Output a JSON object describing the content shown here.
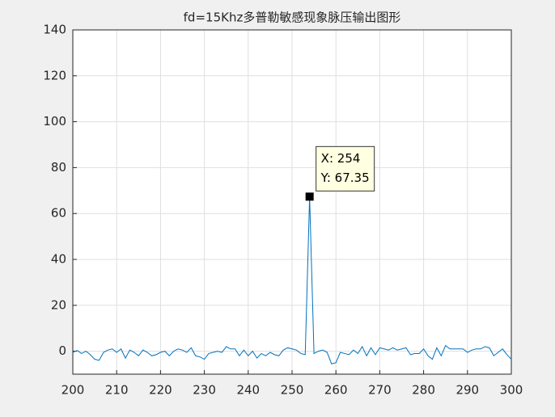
{
  "chart_data": {
    "type": "line",
    "title": "fd=15Khz多普勒敏感现象脉压输出图形",
    "x": [
      200,
      201,
      202,
      203,
      204,
      205,
      206,
      207,
      208,
      209,
      210,
      211,
      212,
      213,
      214,
      215,
      216,
      217,
      218,
      219,
      220,
      221,
      222,
      223,
      224,
      225,
      226,
      227,
      228,
      229,
      230,
      231,
      232,
      233,
      234,
      235,
      236,
      237,
      238,
      239,
      240,
      241,
      242,
      243,
      244,
      245,
      246,
      247,
      248,
      249,
      250,
      251,
      252,
      253,
      254,
      255,
      256,
      257,
      258,
      259,
      260,
      261,
      262,
      263,
      264,
      265,
      266,
      267,
      268,
      269,
      270,
      271,
      272,
      273,
      274,
      275,
      276,
      277,
      278,
      279,
      280,
      281,
      282,
      283,
      284,
      285,
      286,
      287,
      288,
      289,
      290,
      291,
      292,
      293,
      294,
      295,
      296,
      297,
      298,
      299,
      300
    ],
    "series": [
      {
        "color": "#0072bd",
        "values": [
          -0.5,
          0.3,
          -1,
          0,
          -1.5,
          -3.5,
          -4,
          -0.5,
          0.5,
          1,
          -0.5,
          1,
          -3,
          0.5,
          -0.5,
          -2,
          0.5,
          -0.5,
          -2,
          -1.5,
          -0.5,
          0,
          -2,
          0,
          1,
          0.5,
          -0.5,
          1.5,
          -2,
          -2.5,
          -3.5,
          -1,
          -0.5,
          0,
          -0.5,
          2,
          1,
          1,
          -2,
          0.5,
          -2,
          0,
          -3,
          -1,
          -2,
          -0.5,
          -1.5,
          -2,
          0.5,
          1.5,
          1,
          0.5,
          -1,
          -1.5,
          67.35,
          -1,
          0,
          0.5,
          -0.5,
          -5.5,
          -5,
          -0.5,
          -1,
          -1.5,
          0.5,
          -1,
          2,
          -2,
          1.5,
          -1.5,
          1.5,
          1,
          0.5,
          1.5,
          0.5,
          1,
          1.5,
          -1.5,
          -1,
          -1,
          1,
          -2,
          -3.5,
          1.5,
          -2,
          2.5,
          1,
          1,
          1,
          1,
          -0.5,
          0.5,
          1,
          1,
          2,
          1.5,
          -2,
          -0.5,
          1,
          -1.5,
          -3.5
        ]
      }
    ],
    "xlim": [
      200,
      300
    ],
    "xticks": [
      200,
      210,
      220,
      230,
      240,
      250,
      260,
      270,
      280,
      290,
      300
    ],
    "ylim": [
      -10,
      140
    ],
    "yticks": [
      0,
      20,
      40,
      60,
      80,
      100,
      120,
      140
    ],
    "grid": true,
    "datatip": {
      "x": 254,
      "y": 67.35,
      "x_label": "X: 254",
      "y_label": "Y: 67.35"
    }
  }
}
